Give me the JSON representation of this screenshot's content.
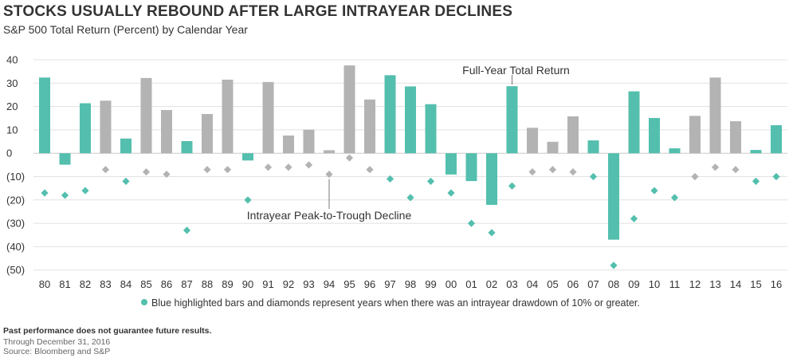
{
  "header": {
    "title": "STOCKS USUALLY REBOUND AFTER LARGE INTRAYEAR DECLINES",
    "subtitle": "S&P 500 Total Return (Percent) by Calendar Year"
  },
  "colors": {
    "highlight": "#54bfae",
    "normal": "#b3b3b3",
    "grid": "#e1e1e1",
    "text": "#333333"
  },
  "chart_data": {
    "type": "bar",
    "title": "STOCKS USUALLY REBOUND AFTER LARGE INTRAYEAR DECLINES",
    "subtitle": "S&P 500 Total Return (Percent) by Calendar Year",
    "categories": [
      "80",
      "81",
      "82",
      "83",
      "84",
      "85",
      "86",
      "87",
      "88",
      "89",
      "90",
      "91",
      "92",
      "93",
      "94",
      "95",
      "96",
      "97",
      "98",
      "99",
      "00",
      "01",
      "02",
      "03",
      "04",
      "05",
      "06",
      "07",
      "08",
      "09",
      "10",
      "11",
      "12",
      "13",
      "14",
      "15",
      "16"
    ],
    "series": [
      {
        "values": [
          32.4,
          -4.9,
          21.4,
          22.5,
          6.3,
          32.2,
          18.5,
          5.2,
          16.8,
          31.5,
          -3.1,
          30.5,
          7.6,
          10.1,
          1.3,
          37.6,
          23.0,
          33.4,
          28.6,
          21.0,
          -9.1,
          -11.9,
          -22.1,
          28.7,
          10.9,
          4.9,
          15.8,
          5.5,
          -37.0,
          26.5,
          15.1,
          2.1,
          16.0,
          32.4,
          13.7,
          1.4,
          12.0
        ]
      },
      {
        "values": [
          -17,
          -18,
          -16,
          -7,
          -12,
          -8,
          -9,
          -33,
          -7,
          -7,
          -20,
          -6,
          -6,
          -5,
          -9,
          -2,
          -7,
          -11,
          -19,
          -12,
          -17,
          -30,
          -34,
          -14,
          -8,
          -7,
          -8,
          -10,
          -48,
          -28,
          -16,
          -19,
          -10,
          -6,
          -7,
          -12,
          -10
        ]
      }
    ],
    "highlighted": [
      true,
      true,
      true,
      false,
      true,
      false,
      false,
      true,
      false,
      false,
      true,
      false,
      false,
      false,
      false,
      false,
      false,
      true,
      true,
      true,
      true,
      true,
      true,
      true,
      false,
      false,
      false,
      true,
      true,
      true,
      true,
      true,
      false,
      false,
      false,
      true,
      true
    ],
    "ylim": [
      -52,
      40
    ],
    "yticks": [
      {
        "v": 40,
        "label": "40"
      },
      {
        "v": 30,
        "label": "30"
      },
      {
        "v": 20,
        "label": "20"
      },
      {
        "v": 10,
        "label": "10"
      },
      {
        "v": 0,
        "label": "0"
      },
      {
        "v": -10,
        "label": "(10)"
      },
      {
        "v": -20,
        "label": "(20)"
      },
      {
        "v": -30,
        "label": "(30)"
      },
      {
        "v": -40,
        "label": "(40)"
      },
      {
        "v": -50,
        "label": "(50)"
      }
    ],
    "annotations": {
      "bars": "Full-Year Total Return",
      "diamonds": "Intrayear Peak-to-Trough Decline"
    },
    "legend": "Blue highlighted bars and diamonds represent years when there was an intrayear drawdown of 10% or greater.",
    "grid": true
  },
  "footer": {
    "disclaimer": "Past performance does not guarantee future results.",
    "through": "Through December 31, 2016",
    "source": "Source: Bloomberg  and S&P"
  }
}
